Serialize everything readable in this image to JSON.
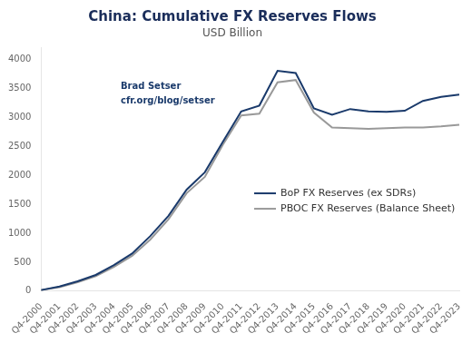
{
  "chart_data": {
    "type": "line",
    "title": "China: Cumulative FX Reserves Flows",
    "subtitle": "USD Billion",
    "annotation": "Brad Setser\ncfr.org/blog/setser",
    "categories": [
      "Q4-2000",
      "Q4-2001",
      "Q4-2002",
      "Q4-2003",
      "Q4-2004",
      "Q4-2005",
      "Q4-2006",
      "Q4-2007",
      "Q4-2008",
      "Q4-2009",
      "Q4-2010",
      "Q4-2011",
      "Q4-2012",
      "Q4-2013",
      "Q4-2014",
      "Q4-2015",
      "Q4-2016",
      "Q4-2017",
      "Q4-2018",
      "Q4-2019",
      "Q4-2020",
      "Q4-2021",
      "Q4-2022",
      "Q4-2023"
    ],
    "series": [
      {
        "name": "BoP FX Reserves (ex SDRs)",
        "color": "#1a3a6b",
        "values": [
          20,
          80,
          170,
          280,
          450,
          650,
          950,
          1300,
          1750,
          2050,
          2580,
          3100,
          3200,
          3800,
          3760,
          3150,
          3040,
          3140,
          3100,
          3090,
          3110,
          3280,
          3350,
          3390
        ]
      },
      {
        "name": "PBOC FX Reserves (Balance Sheet)",
        "color": "#999999",
        "values": [
          20,
          70,
          155,
          260,
          420,
          610,
          890,
          1240,
          1690,
          1970,
          2530,
          3030,
          3060,
          3600,
          3640,
          3080,
          2820,
          2810,
          2800,
          2810,
          2820,
          2820,
          2840,
          2870
        ]
      }
    ],
    "ylim": [
      0,
      4200
    ],
    "yticks": [
      0,
      500,
      1000,
      1500,
      2000,
      2500,
      3000,
      3500,
      4000
    ],
    "grid": false,
    "legend": "right"
  }
}
